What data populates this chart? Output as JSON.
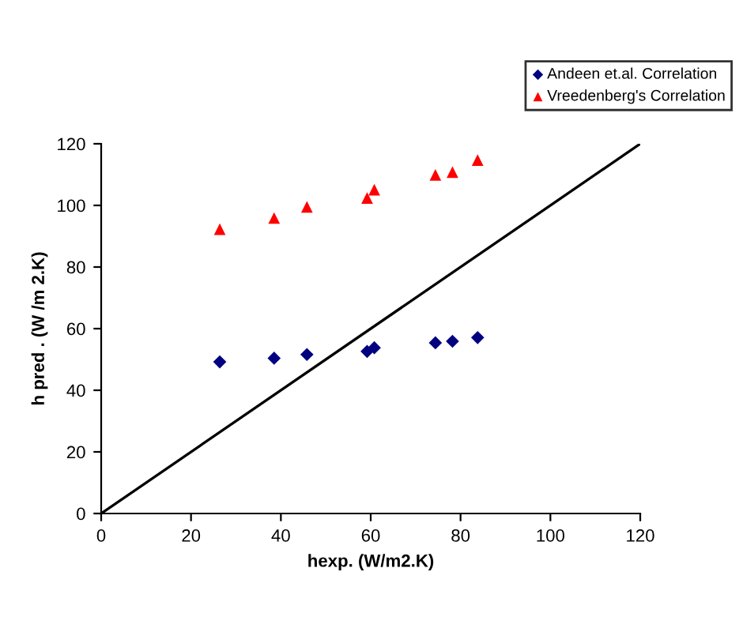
{
  "chart_data": {
    "type": "scatter",
    "xlabel": "hexp. (W/m2.K)",
    "ylabel": "h pred . (W /m 2.K)",
    "xlim": [
      0,
      120
    ],
    "ylim": [
      0,
      120
    ],
    "xticks": [
      0,
      20,
      40,
      60,
      80,
      100,
      120
    ],
    "yticks": [
      0,
      20,
      40,
      60,
      80,
      100,
      120
    ],
    "grid": false,
    "legend": "top right",
    "series": [
      {
        "name": "Andeen et.al. Correlation",
        "color": "#000080",
        "marker": "diamond",
        "x": [
          26.4,
          38.5,
          45.8,
          59.2,
          60.8,
          74.4,
          78.2,
          83.8
        ],
        "values": [
          49.2,
          50.4,
          51.6,
          52.6,
          53.8,
          55.4,
          55.9,
          57.1
        ]
      },
      {
        "name": "Vreedenberg's Correlation",
        "color": "#ff0000",
        "marker": "triangle",
        "x": [
          26.4,
          38.5,
          45.8,
          59.2,
          60.8,
          74.4,
          78.2,
          83.8
        ],
        "values": [
          92.3,
          95.9,
          99.5,
          102.4,
          105.1,
          109.9,
          110.8,
          114.7
        ]
      },
      {
        "type": "line",
        "color": "#000000",
        "marker": "none",
        "line_style": "solid",
        "x": [
          0,
          120
        ],
        "values": [
          0,
          120
        ]
      }
    ]
  }
}
